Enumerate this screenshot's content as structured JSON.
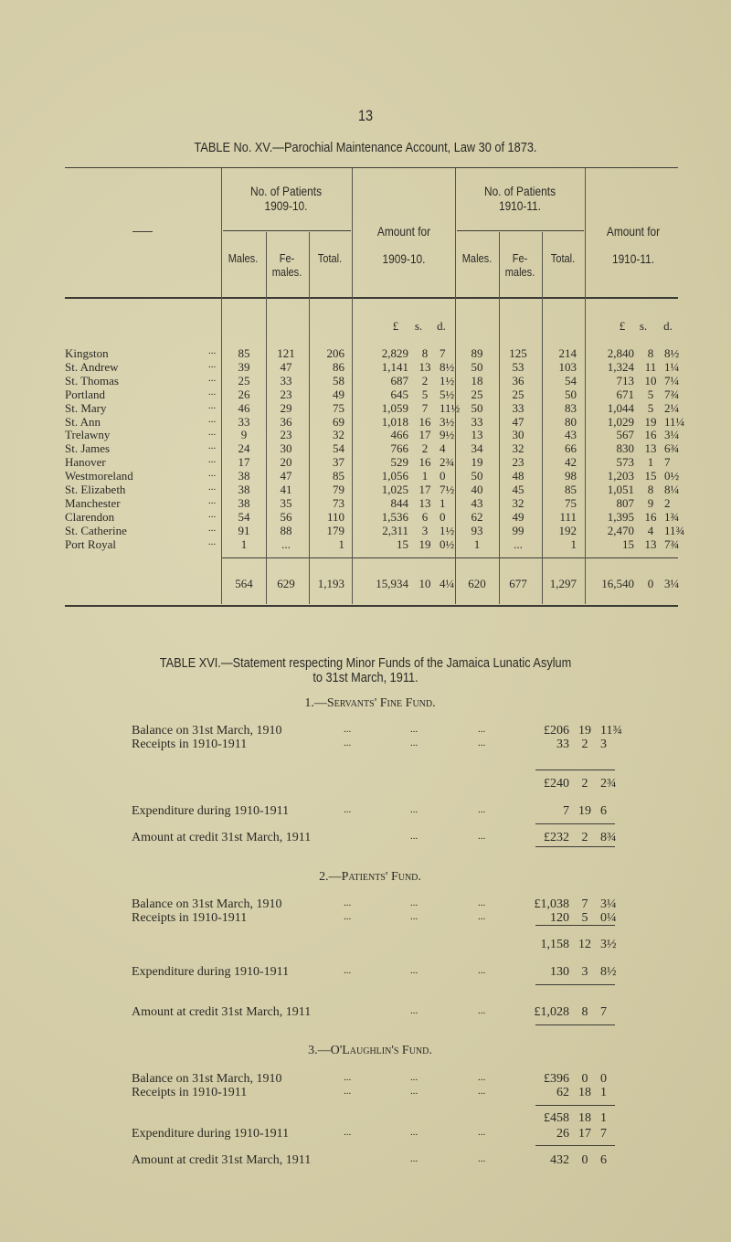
{
  "page_number": "13",
  "table15": {
    "title": "TABLE No. XV.—Parochial Maintenance Account, Law 30 of 1873.",
    "blank_header": "——",
    "group1": "No. of Patients",
    "group1_year": "1909-10.",
    "group2": "No. of Patients",
    "group2_year": "1910-11.",
    "amount1": "Amount for",
    "amount1_year": "1909-10.",
    "amount2": "Amount for",
    "amount2_year": "1910-11.",
    "males": "Males.",
    "females_1": "Fe-",
    "females_2": "males.",
    "total": "Total.",
    "currency_l": "£",
    "currency_s": "s.",
    "currency_d": "d.",
    "dots": "...",
    "rows": [
      [
        "Kingston",
        "85",
        "121",
        "206",
        "2,829",
        "8",
        "7",
        "89",
        "125",
        "214",
        "2,840",
        "8",
        "8½"
      ],
      [
        "St. Andrew",
        "39",
        "47",
        "86",
        "1,141",
        "13",
        "8½",
        "50",
        "53",
        "103",
        "1,324",
        "11",
        "1¼"
      ],
      [
        "St. Thomas",
        "25",
        "33",
        "58",
        "687",
        "2",
        "1½",
        "18",
        "36",
        "54",
        "713",
        "10",
        "7¼"
      ],
      [
        "Portland",
        "26",
        "23",
        "49",
        "645",
        "5",
        "5½",
        "25",
        "25",
        "50",
        "671",
        "5",
        "7¾"
      ],
      [
        "St. Mary",
        "46",
        "29",
        "75",
        "1,059",
        "7",
        "11½",
        "50",
        "33",
        "83",
        "1,044",
        "5",
        "2¼"
      ],
      [
        "St. Ann",
        "33",
        "36",
        "69",
        "1,018",
        "16",
        "3½",
        "33",
        "47",
        "80",
        "1,029",
        "19",
        "11¼"
      ],
      [
        "Trelawny",
        "9",
        "23",
        "32",
        "466",
        "17",
        "9½",
        "13",
        "30",
        "43",
        "567",
        "16",
        "3¼"
      ],
      [
        "St. James",
        "24",
        "30",
        "54",
        "766",
        "2",
        "4",
        "34",
        "32",
        "66",
        "830",
        "13",
        "6¾"
      ],
      [
        "Hanover",
        "17",
        "20",
        "37",
        "529",
        "16",
        "2¾",
        "19",
        "23",
        "42",
        "573",
        "1",
        "7"
      ],
      [
        "Westmoreland",
        "38",
        "47",
        "85",
        "1,056",
        "1",
        "0",
        "50",
        "48",
        "98",
        "1,203",
        "15",
        "0½"
      ],
      [
        "St. Elizabeth",
        "38",
        "41",
        "79",
        "1,025",
        "17",
        "7½",
        "40",
        "45",
        "85",
        "1,051",
        "8",
        "8¼"
      ],
      [
        "Manchester",
        "38",
        "35",
        "73",
        "844",
        "13",
        "1",
        "43",
        "32",
        "75",
        "807",
        "9",
        "2"
      ],
      [
        "Clarendon",
        "54",
        "56",
        "110",
        "1,536",
        "6",
        "0",
        "62",
        "49",
        "111",
        "1,395",
        "16",
        "1¾"
      ],
      [
        "St. Catherine",
        "91",
        "88",
        "179",
        "2,311",
        "3",
        "1½",
        "93",
        "99",
        "192",
        "2,470",
        "4",
        "11¾"
      ],
      [
        "Port Royal",
        "1",
        "...",
        "1",
        "15",
        "19",
        "0½",
        "1",
        "...",
        "1",
        "15",
        "13",
        "7¾"
      ]
    ],
    "totals": [
      "564",
      "629",
      "1,193",
      "15,934",
      "10",
      "4¼",
      "620",
      "677",
      "1,297",
      "16,540",
      "0",
      "3¼"
    ]
  },
  "table16": {
    "title_line1": "TABLE XVI.—Statement respecting Minor Funds of the Jamaica Lunatic Asylum",
    "title_line2": "to 31st March, 1911.",
    "dots": "...",
    "funds": [
      {
        "heading": "1.—Servants' Fine Fund.",
        "lines": [
          {
            "label": "Balance on 31st March, 1910",
            "l": "£206",
            "s": "19",
            "d": "11¾"
          },
          {
            "label": "Receipts in 1910-1911",
            "l": "33",
            "s": "2",
            "d": "3"
          },
          {
            "label": "",
            "l": "£240",
            "s": "2",
            "d": "2¾"
          },
          {
            "label": "Expenditure during 1910-1911",
            "l": "7",
            "s": "19",
            "d": "6"
          },
          {
            "label": "Amount at credit 31st March, 1911",
            "l": "£232",
            "s": "2",
            "d": "8¾"
          }
        ]
      },
      {
        "heading": "2.—Patients' Fund.",
        "lines": [
          {
            "label": "Balance on 31st March, 1910",
            "l": "£1,038",
            "s": "7",
            "d": "3¼"
          },
          {
            "label": "Receipts in 1910-1911",
            "l": "120",
            "s": "5",
            "d": "0¼"
          },
          {
            "label": "",
            "l": "1,158",
            "s": "12",
            "d": "3½"
          },
          {
            "label": "Expenditure during 1910-1911",
            "l": "130",
            "s": "3",
            "d": "8½"
          },
          {
            "label": "Amount at credit 31st March, 1911",
            "l": "£1,028",
            "s": "8",
            "d": "7"
          }
        ]
      },
      {
        "heading": "3.—O'Laughlin's Fund.",
        "lines": [
          {
            "label": "Balance on 31st March, 1910",
            "l": "£396",
            "s": "0",
            "d": "0"
          },
          {
            "label": "Receipts in 1910-1911",
            "l": "62",
            "s": "18",
            "d": "1"
          },
          {
            "label": "",
            "l": "£458",
            "s": "18",
            "d": "1"
          },
          {
            "label": "Expenditure during 1910-1911",
            "l": "26",
            "s": "17",
            "d": "7"
          },
          {
            "label": "Amount at credit 31st March, 1911",
            "l": "432",
            "s": "0",
            "d": "6"
          }
        ]
      }
    ]
  }
}
